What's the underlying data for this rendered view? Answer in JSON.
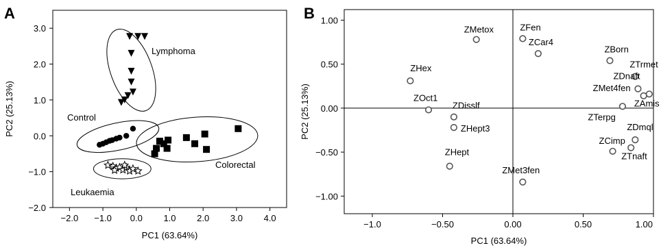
{
  "panels": {
    "a": {
      "letter": "A"
    },
    "b": {
      "letter": "B"
    }
  },
  "chart_data": [
    {
      "type": "scatter",
      "panel": "A",
      "xlabel": "PC1 (63.64%)",
      "ylabel": "PC2 (25.13%)",
      "xlim": [
        -2.5,
        4.5
      ],
      "ylim": [
        -2.0,
        3.5
      ],
      "xticks": [
        -2.0,
        -1.0,
        0.0,
        1.0,
        2.0,
        3.0,
        4.0
      ],
      "xtick_labels": [
        "−2.0",
        "−1.0",
        "0.0",
        "1.0",
        "2.0",
        "3.0",
        "4.0"
      ],
      "yticks": [
        -2.0,
        -1.0,
        0.0,
        1.0,
        2.0,
        3.0
      ],
      "ytick_labels": [
        "−2.0",
        "−1.0",
        "0.0",
        "1.0",
        "2.0",
        "3.0"
      ],
      "grid": false,
      "series": [
        {
          "name": "Lymphoma",
          "marker": "triangle-down",
          "points": [
            [
              -0.2,
              2.77
            ],
            [
              0.05,
              2.77
            ],
            [
              0.25,
              2.77
            ],
            [
              -0.15,
              2.3
            ],
            [
              -0.15,
              1.8
            ],
            [
              -0.15,
              1.5
            ],
            [
              -0.1,
              1.22
            ],
            [
              -0.25,
              1.12
            ],
            [
              -0.35,
              1.0
            ],
            [
              -0.45,
              0.93
            ]
          ]
        },
        {
          "name": "Control",
          "marker": "filled-circle",
          "points": [
            [
              -1.1,
              -0.25
            ],
            [
              -1.0,
              -0.22
            ],
            [
              -0.9,
              -0.18
            ],
            [
              -0.8,
              -0.14
            ],
            [
              -0.72,
              -0.12
            ],
            [
              -0.6,
              -0.08
            ],
            [
              -0.5,
              -0.05
            ],
            [
              -0.3,
              0.0
            ],
            [
              -0.1,
              0.2
            ]
          ]
        },
        {
          "name": "Colorectal",
          "marker": "filled-square",
          "points": [
            [
              0.55,
              -0.5
            ],
            [
              0.6,
              -0.35
            ],
            [
              0.7,
              -0.15
            ],
            [
              0.82,
              -0.22
            ],
            [
              0.95,
              -0.12
            ],
            [
              0.92,
              -0.35
            ],
            [
              1.5,
              -0.05
            ],
            [
              1.75,
              -0.22
            ],
            [
              2.05,
              0.05
            ],
            [
              2.1,
              -0.38
            ],
            [
              3.05,
              0.2
            ]
          ]
        },
        {
          "name": "Leukaemia",
          "marker": "open-star",
          "points": [
            [
              -0.85,
              -0.82
            ],
            [
              -0.7,
              -0.85
            ],
            [
              -0.6,
              -0.9
            ],
            [
              -0.5,
              -0.88
            ],
            [
              -0.4,
              -0.95
            ],
            [
              -0.3,
              -0.88
            ],
            [
              -0.2,
              -0.98
            ],
            [
              -0.1,
              -0.92
            ],
            [
              0.05,
              -0.98
            ],
            [
              -0.65,
              -0.96
            ],
            [
              -0.35,
              -0.82
            ]
          ]
        }
      ],
      "annotations": [
        "Lymphoma",
        "Control",
        "Colorectal",
        "Leukaemia"
      ],
      "ellipses": [
        {
          "label": "Lymphoma",
          "cx": -0.15,
          "cy": 1.83,
          "rx": 0.62,
          "ry": 1.2,
          "angle_deg": -20
        },
        {
          "label": "Control",
          "cx": -0.55,
          "cy": -0.02,
          "rx": 1.25,
          "ry": 0.38,
          "angle_deg": -12
        },
        {
          "label": "Colorectal",
          "cx": 1.82,
          "cy": -0.1,
          "rx": 1.82,
          "ry": 0.62,
          "angle_deg": -4
        },
        {
          "label": "Leukaemia",
          "cx": -0.42,
          "cy": -0.92,
          "rx": 0.86,
          "ry": 0.28,
          "angle_deg": 0
        }
      ]
    },
    {
      "type": "scatter",
      "panel": "B",
      "xlabel": "PC1 (63.64%)",
      "ylabel": "PC2 (25.13%)",
      "xlim": [
        -1.2,
        1.0
      ],
      "ylim": [
        -1.2,
        1.12
      ],
      "xticks": [
        -1.0,
        -0.5,
        0.0,
        0.5,
        1.0
      ],
      "xtick_labels": [
        "−1.0",
        "−0.50",
        "0.00",
        "0.50",
        "1.00"
      ],
      "yticks": [
        -1.0,
        -0.5,
        0.0,
        0.5,
        1.0
      ],
      "ytick_labels": [
        "−1.00",
        "−0.50",
        "0.00",
        "0.50",
        "1.00"
      ],
      "grid": false,
      "reference_lines": {
        "x": 0.0,
        "y": 0.0
      },
      "points": [
        {
          "label": "ZMetox",
          "x": -0.26,
          "y": 0.78
        },
        {
          "label": "ZFen",
          "x": 0.07,
          "y": 0.79
        },
        {
          "label": "ZCar4",
          "x": 0.18,
          "y": 0.62
        },
        {
          "label": "ZBorn",
          "x": 0.69,
          "y": 0.54
        },
        {
          "label": "ZTrmet",
          "x": 0.87,
          "y": 0.36
        },
        {
          "label": "ZDnaft",
          "x": 0.89,
          "y": 0.22
        },
        {
          "label": "ZMet4fen",
          "x": 0.93,
          "y": 0.14
        },
        {
          "label": "ZAmis",
          "x": 0.97,
          "y": 0.16
        },
        {
          "label": "ZTerpg",
          "x": 0.78,
          "y": 0.02
        },
        {
          "label": "ZDmql",
          "x": 0.87,
          "y": -0.36
        },
        {
          "label": "ZCimp",
          "x": 0.71,
          "y": -0.49
        },
        {
          "label": "ZTnaft",
          "x": 0.84,
          "y": -0.45
        },
        {
          "label": "ZHex",
          "x": -0.73,
          "y": 0.31
        },
        {
          "label": "ZOct1",
          "x": -0.6,
          "y": -0.02
        },
        {
          "label": "ZDisslf",
          "x": -0.42,
          "y": -0.1
        },
        {
          "label": "ZHept3",
          "x": -0.42,
          "y": -0.22
        },
        {
          "label": "ZHept",
          "x": -0.45,
          "y": -0.66
        },
        {
          "label": "ZMet3fen",
          "x": 0.07,
          "y": -0.84
        }
      ]
    }
  ]
}
